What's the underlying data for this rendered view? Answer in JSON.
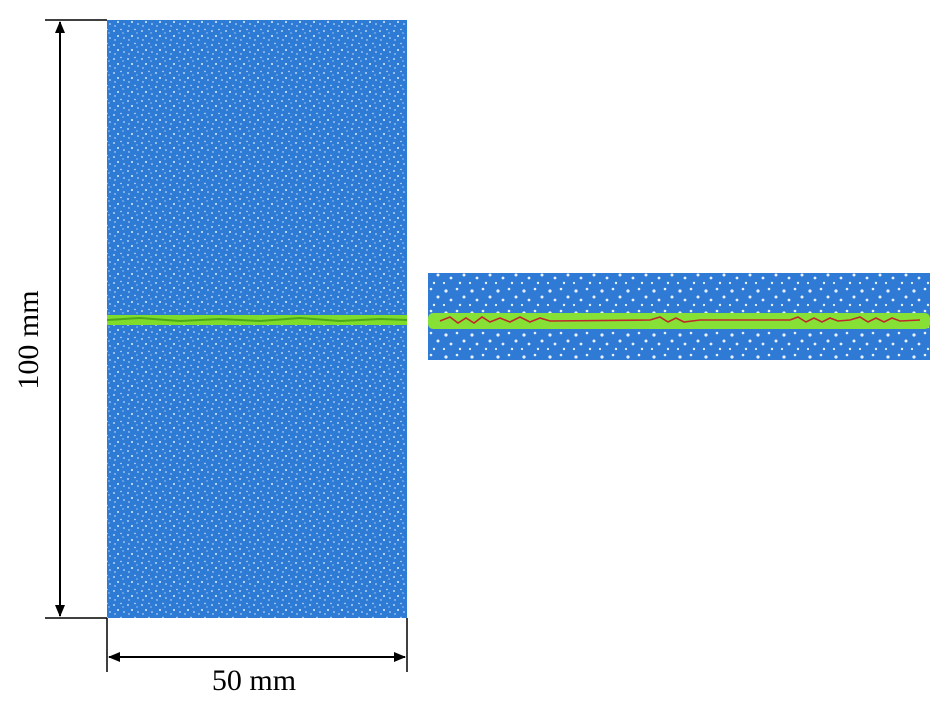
{
  "labels": {
    "height": "100 mm",
    "width": "50 mm"
  }
}
